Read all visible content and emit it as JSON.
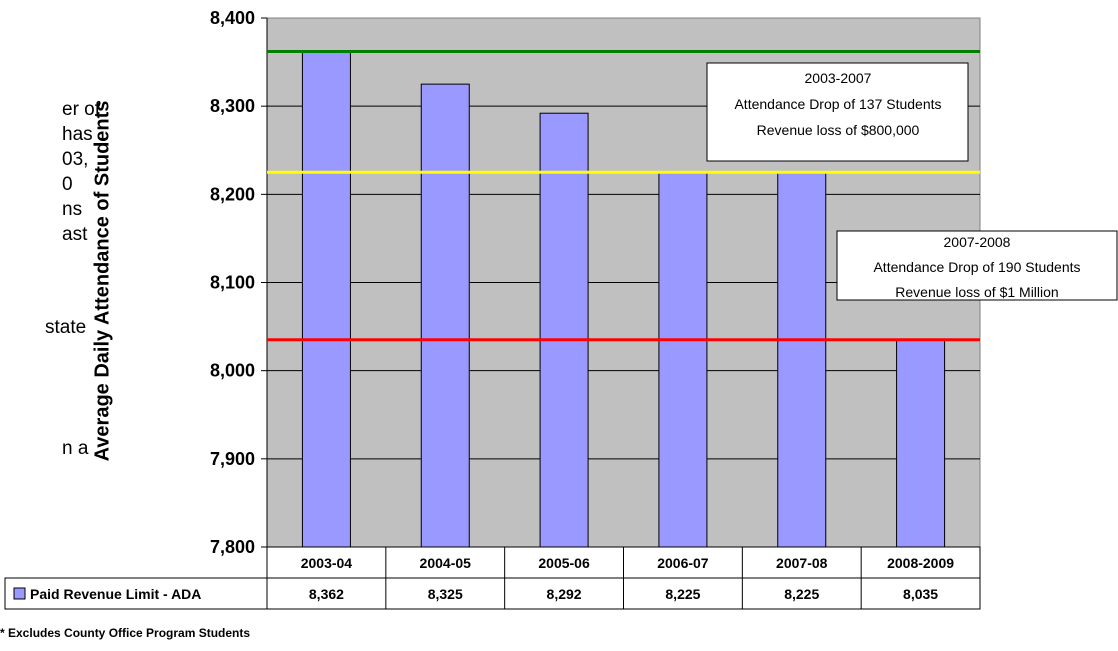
{
  "side_text_fragments": [
    "er of",
    "has",
    "03,",
    "0",
    "ns",
    "ast",
    "state",
    "n a"
  ],
  "footnote": "* Excludes County Office Program Students",
  "chart_data": {
    "type": "bar",
    "categories": [
      "2003-04",
      "2004-05",
      "2005-06",
      "2006-07",
      "2007-08",
      "2008-2009"
    ],
    "series": [
      {
        "name": "Paid Revenue Limit - ADA",
        "values": [
          8362,
          8325,
          8292,
          8225,
          8225,
          8035
        ],
        "color": "#9999ff"
      }
    ],
    "value_labels": [
      "8,362",
      "8,325",
      "8,292",
      "8,225",
      "8,225",
      "8,035"
    ],
    "ytick_labels": [
      "7,800",
      "7,900",
      "8,000",
      "8,100",
      "8,200",
      "8,300",
      "8,400"
    ],
    "ylim": [
      7800,
      8400
    ],
    "ylabel": "Average Daily Attendance of Students",
    "xlabel": "",
    "title": "",
    "grid": true,
    "legend": "data-table",
    "plot_background": "#c0c0c0",
    "reference_lines": [
      {
        "value": 8362,
        "color": "#008000"
      },
      {
        "value": 8225,
        "color": "#ffff00"
      },
      {
        "value": 8035,
        "color": "#ff0000"
      }
    ],
    "annotations": [
      {
        "lines": [
          "2003-2007",
          "Attendance Drop of 137 Students",
          "Revenue loss of $800,000"
        ]
      },
      {
        "lines": [
          "2007-2008",
          "Attendance Drop of 190 Students",
          "Revenue loss of $1 Million"
        ]
      }
    ]
  }
}
